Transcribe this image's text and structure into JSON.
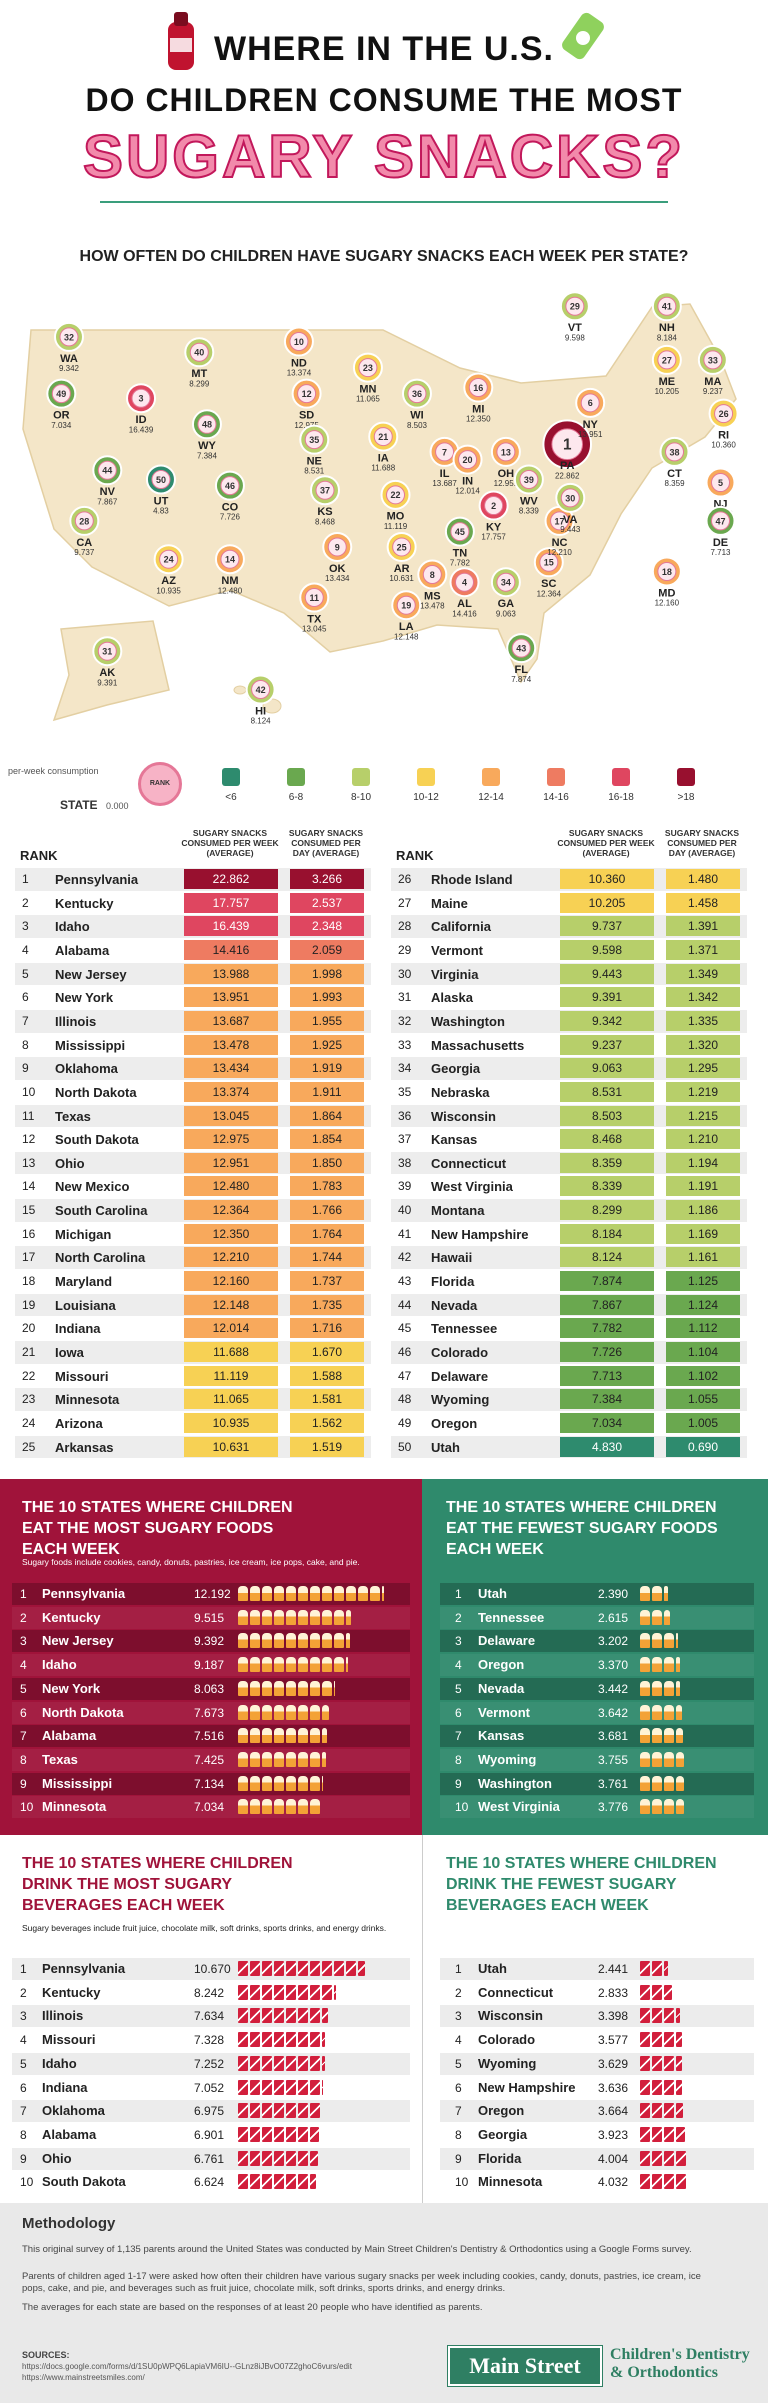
{
  "header": {
    "title_lines": [
      "WHERE IN THE U.S.",
      "DO CHILDREN CONSUME THE MOST",
      "SUGARY SNACKS?"
    ]
  },
  "map": {
    "title": "HOW OFTEN DO CHILDREN HAVE SUGARY SNACKS EACH WEEK PER STATE?",
    "states": [
      {
        "abbr": "WA",
        "rank": 32,
        "value": "9.342"
      },
      {
        "abbr": "OR",
        "rank": 49,
        "value": "7.034"
      },
      {
        "abbr": "CA",
        "rank": 28,
        "value": "9.737"
      },
      {
        "abbr": "ID",
        "rank": 3,
        "value": "16.439"
      },
      {
        "abbr": "NV",
        "rank": 44,
        "value": "7.867"
      },
      {
        "abbr": "UT",
        "rank": 50,
        "value": "4.83"
      },
      {
        "abbr": "AZ",
        "rank": 24,
        "value": "10.935"
      },
      {
        "abbr": "MT",
        "rank": 40,
        "value": "8.299"
      },
      {
        "abbr": "WY",
        "rank": 48,
        "value": "7.384"
      },
      {
        "abbr": "CO",
        "rank": 46,
        "value": "7.726"
      },
      {
        "abbr": "NM",
        "rank": 14,
        "value": "12.480"
      },
      {
        "abbr": "ND",
        "rank": 10,
        "value": "13.374"
      },
      {
        "abbr": "SD",
        "rank": 12,
        "value": "12.975"
      },
      {
        "abbr": "NE",
        "rank": 35,
        "value": "8.531"
      },
      {
        "abbr": "KS",
        "rank": 37,
        "value": "8.468"
      },
      {
        "abbr": "OK",
        "rank": 9,
        "value": "13.434"
      },
      {
        "abbr": "TX",
        "rank": 11,
        "value": "13.045"
      },
      {
        "abbr": "MN",
        "rank": 23,
        "value": "11.065"
      },
      {
        "abbr": "IA",
        "rank": 21,
        "value": "11.688"
      },
      {
        "abbr": "MO",
        "rank": 22,
        "value": "11.119"
      },
      {
        "abbr": "AR",
        "rank": 25,
        "value": "10.631"
      },
      {
        "abbr": "LA",
        "rank": 19,
        "value": "12.148"
      },
      {
        "abbr": "WI",
        "rank": 36,
        "value": "8.503"
      },
      {
        "abbr": "IL",
        "rank": 7,
        "value": "13.687"
      },
      {
        "abbr": "MS",
        "rank": 8,
        "value": "13.478"
      },
      {
        "abbr": "MI",
        "rank": 16,
        "value": "12.350"
      },
      {
        "abbr": "IN",
        "rank": 20,
        "value": "12.014"
      },
      {
        "abbr": "KY",
        "rank": 2,
        "value": "17.757"
      },
      {
        "abbr": "TN",
        "rank": 45,
        "value": "7.782"
      },
      {
        "abbr": "AL",
        "rank": 4,
        "value": "14.416"
      },
      {
        "abbr": "OH",
        "rank": 13,
        "value": "12.951"
      },
      {
        "abbr": "GA",
        "rank": 34,
        "value": "9.063"
      },
      {
        "abbr": "FL",
        "rank": 43,
        "value": "7.874"
      },
      {
        "abbr": "SC",
        "rank": 15,
        "value": "12.364"
      },
      {
        "abbr": "NC",
        "rank": 17,
        "value": "12.210"
      },
      {
        "abbr": "VA",
        "rank": 30,
        "value": "9.443"
      },
      {
        "abbr": "WV",
        "rank": 39,
        "value": "8.339"
      },
      {
        "abbr": "PA",
        "rank": 1,
        "value": "22.862"
      },
      {
        "abbr": "NY",
        "rank": 6,
        "value": "13.951"
      },
      {
        "abbr": "VT",
        "rank": 29,
        "value": "9.598"
      },
      {
        "abbr": "NH",
        "rank": 41,
        "value": "8.184"
      },
      {
        "abbr": "ME",
        "rank": 27,
        "value": "10.205"
      },
      {
        "abbr": "MA",
        "rank": 33,
        "value": "9.237"
      },
      {
        "abbr": "RI",
        "rank": 26,
        "value": "10.360"
      },
      {
        "abbr": "CT",
        "rank": 38,
        "value": "8.359"
      },
      {
        "abbr": "NJ",
        "rank": 5,
        "value": "13.988"
      },
      {
        "abbr": "DE",
        "rank": 47,
        "value": "7.713"
      },
      {
        "abbr": "MD",
        "rank": 18,
        "value": "12.160"
      },
      {
        "abbr": "AK",
        "rank": 31,
        "value": "9.391"
      },
      {
        "abbr": "HI",
        "rank": 42,
        "value": "8.124"
      }
    ],
    "legend": {
      "caption": "per-week consumption",
      "key_state": "STATE",
      "key_value": "0.000",
      "key_rank": "RANK",
      "items": [
        {
          "label": "<6",
          "color": "#2e8b6e"
        },
        {
          "label": "6-8",
          "color": "#6aa84f"
        },
        {
          "label": "8-10",
          "color": "#b7cf6a"
        },
        {
          "label": "10-12",
          "color": "#f7d154"
        },
        {
          "label": "12-14",
          "color": "#f8a95c"
        },
        {
          "label": "14-16",
          "color": "#ee7b61"
        },
        {
          "label": "16-18",
          "color": "#df4660"
        },
        {
          "label": ">18",
          "color": "#98102f"
        }
      ]
    }
  },
  "ranking": {
    "headers": [
      "RANK",
      "SUGARY SNACKS CONSUMED PER WEEK (AVERAGE)",
      "SUGARY SNACKS CONSUMED PER DAY (AVERAGE)"
    ],
    "rows": [
      [
        1,
        "Pennsylvania",
        "22.862",
        "3.266"
      ],
      [
        2,
        "Kentucky",
        "17.757",
        "2.537"
      ],
      [
        3,
        "Idaho",
        "16.439",
        "2.348"
      ],
      [
        4,
        "Alabama",
        "14.416",
        "2.059"
      ],
      [
        5,
        "New Jersey",
        "13.988",
        "1.998"
      ],
      [
        6,
        "New York",
        "13.951",
        "1.993"
      ],
      [
        7,
        "Illinois",
        "13.687",
        "1.955"
      ],
      [
        8,
        "Mississippi",
        "13.478",
        "1.925"
      ],
      [
        9,
        "Oklahoma",
        "13.434",
        "1.919"
      ],
      [
        10,
        "North Dakota",
        "13.374",
        "1.911"
      ],
      [
        11,
        "Texas",
        "13.045",
        "1.864"
      ],
      [
        12,
        "South Dakota",
        "12.975",
        "1.854"
      ],
      [
        13,
        "Ohio",
        "12.951",
        "1.850"
      ],
      [
        14,
        "New Mexico",
        "12.480",
        "1.783"
      ],
      [
        15,
        "South Carolina",
        "12.364",
        "1.766"
      ],
      [
        16,
        "Michigan",
        "12.350",
        "1.764"
      ],
      [
        17,
        "North Carolina",
        "12.210",
        "1.744"
      ],
      [
        18,
        "Maryland",
        "12.160",
        "1.737"
      ],
      [
        19,
        "Louisiana",
        "12.148",
        "1.735"
      ],
      [
        20,
        "Indiana",
        "12.014",
        "1.716"
      ],
      [
        21,
        "Iowa",
        "11.688",
        "1.670"
      ],
      [
        22,
        "Missouri",
        "11.119",
        "1.588"
      ],
      [
        23,
        "Minnesota",
        "11.065",
        "1.581"
      ],
      [
        24,
        "Arizona",
        "10.935",
        "1.562"
      ],
      [
        25,
        "Arkansas",
        "10.631",
        "1.519"
      ],
      [
        26,
        "Rhode Island",
        "10.360",
        "1.480"
      ],
      [
        27,
        "Maine",
        "10.205",
        "1.458"
      ],
      [
        28,
        "California",
        "9.737",
        "1.391"
      ],
      [
        29,
        "Vermont",
        "9.598",
        "1.371"
      ],
      [
        30,
        "Virginia",
        "9.443",
        "1.349"
      ],
      [
        31,
        "Alaska",
        "9.391",
        "1.342"
      ],
      [
        32,
        "Washington",
        "9.342",
        "1.335"
      ],
      [
        33,
        "Massachusetts",
        "9.237",
        "1.320"
      ],
      [
        34,
        "Georgia",
        "9.063",
        "1.295"
      ],
      [
        35,
        "Nebraska",
        "8.531",
        "1.219"
      ],
      [
        36,
        "Wisconsin",
        "8.503",
        "1.215"
      ],
      [
        37,
        "Kansas",
        "8.468",
        "1.210"
      ],
      [
        38,
        "Connecticut",
        "8.359",
        "1.194"
      ],
      [
        39,
        "West Virginia",
        "8.339",
        "1.191"
      ],
      [
        40,
        "Montana",
        "8.299",
        "1.186"
      ],
      [
        41,
        "New Hampshire",
        "8.184",
        "1.169"
      ],
      [
        42,
        "Hawaii",
        "8.124",
        "1.161"
      ],
      [
        43,
        "Florida",
        "7.874",
        "1.125"
      ],
      [
        44,
        "Nevada",
        "7.867",
        "1.124"
      ],
      [
        45,
        "Tennessee",
        "7.782",
        "1.112"
      ],
      [
        46,
        "Colorado",
        "7.726",
        "1.104"
      ],
      [
        47,
        "Delaware",
        "7.713",
        "1.102"
      ],
      [
        48,
        "Wyoming",
        "7.384",
        "1.055"
      ],
      [
        49,
        "Oregon",
        "7.034",
        "1.005"
      ],
      [
        50,
        "Utah",
        "4.830",
        "0.690"
      ]
    ]
  },
  "panels": [
    {
      "title": "THE 10 STATES WHERE CHILDREN EAT THE MOST SUGARY FOODS EACH WEEK",
      "subtitle": "Sugary foods include cookies, candy, donuts, pastries, ice cream, ice pops, cake, and pie.",
      "icon": "food",
      "background": "#a0133a",
      "accent": "#ffffff",
      "rows": [
        [
          1,
          "Pennsylvania",
          "12.192"
        ],
        [
          2,
          "Kentucky",
          "9.515"
        ],
        [
          3,
          "New Jersey",
          "9.392"
        ],
        [
          4,
          "Idaho",
          "9.187"
        ],
        [
          5,
          "New York",
          "8.063"
        ],
        [
          6,
          "North Dakota",
          "7.673"
        ],
        [
          7,
          "Alabama",
          "7.516"
        ],
        [
          8,
          "Texas",
          "7.425"
        ],
        [
          9,
          "Mississippi",
          "7.134"
        ],
        [
          10,
          "Minnesota",
          "7.034"
        ]
      ]
    },
    {
      "title": "THE 10 STATES WHERE CHILDREN EAT THE FEWEST SUGARY FOODS EACH WEEK",
      "icon": "food",
      "background": "#2f8a6c",
      "accent": "#ffffff",
      "rows": [
        [
          1,
          "Utah",
          "2.390"
        ],
        [
          2,
          "Tennessee",
          "2.615"
        ],
        [
          3,
          "Delaware",
          "3.202"
        ],
        [
          4,
          "Oregon",
          "3.370"
        ],
        [
          5,
          "Nevada",
          "3.442"
        ],
        [
          6,
          "Vermont",
          "3.642"
        ],
        [
          7,
          "Kansas",
          "3.681"
        ],
        [
          8,
          "Wyoming",
          "3.755"
        ],
        [
          9,
          "Washington",
          "3.761"
        ],
        [
          10,
          "West Virginia",
          "3.776"
        ]
      ]
    },
    {
      "title": "THE 10 STATES WHERE CHILDREN DRINK THE MOST SUGARY BEVERAGES EACH WEEK",
      "subtitle": "Sugary beverages include fruit juice, chocolate milk, soft drinks, sports drinks, and energy drinks.",
      "icon": "beverage",
      "background": "#ffffff",
      "accent": "#a0133a",
      "rows": [
        [
          1,
          "Pennsylvania",
          "10.670"
        ],
        [
          2,
          "Kentucky",
          "8.242"
        ],
        [
          3,
          "Illinois",
          "7.634"
        ],
        [
          4,
          "Missouri",
          "7.328"
        ],
        [
          5,
          "Idaho",
          "7.252"
        ],
        [
          6,
          "Indiana",
          "7.052"
        ],
        [
          7,
          "Oklahoma",
          "6.975"
        ],
        [
          8,
          "Alabama",
          "6.901"
        ],
        [
          9,
          "Ohio",
          "6.761"
        ],
        [
          10,
          "South Dakota",
          "6.624"
        ]
      ]
    },
    {
      "title": "THE 10 STATES WHERE CHILDREN DRINK THE FEWEST SUGARY BEVERAGES EACH WEEK",
      "icon": "beverage",
      "background": "#ffffff",
      "accent": "#2f8a6c",
      "rows": [
        [
          1,
          "Utah",
          "2.441"
        ],
        [
          2,
          "Connecticut",
          "2.833"
        ],
        [
          3,
          "Wisconsin",
          "3.398"
        ],
        [
          4,
          "Colorado",
          "3.577"
        ],
        [
          5,
          "Wyoming",
          "3.629"
        ],
        [
          6,
          "New Hampshire",
          "3.636"
        ],
        [
          7,
          "Oregon",
          "3.664"
        ],
        [
          8,
          "Georgia",
          "3.923"
        ],
        [
          9,
          "Florida",
          "4.004"
        ],
        [
          10,
          "Minnesota",
          "4.032"
        ]
      ]
    }
  ],
  "methodology": {
    "title": "Methodology",
    "paragraphs": [
      "This original survey of 1,135 parents around the United States was conducted by Main Street Children's Dentistry & Orthodontics using a Google Forms survey.",
      "Parents of children aged 1-17 were asked how often their children have various sugary snacks per week including cookies, candy, donuts, pastries, ice cream, ice pops, cake, and pie, and beverages such as fruit juice, chocolate milk, soft drinks, sports drinks, and energy drinks.",
      "The averages for each state are based on the responses of at least 20 people who have identified as parents."
    ]
  },
  "footer": {
    "sources_label": "SOURCES:",
    "sources": [
      "https://docs.google.com/forms/d/1SU0pWPQ6LapiaVM6IU--GLnz8iJBvO07Z2ghoC6vurs/edit",
      "https://www.mainstreetsmiles.com/"
    ],
    "logo": "Main Street",
    "logo_tagline": "Children's Dentistry & Orthodontics"
  }
}
